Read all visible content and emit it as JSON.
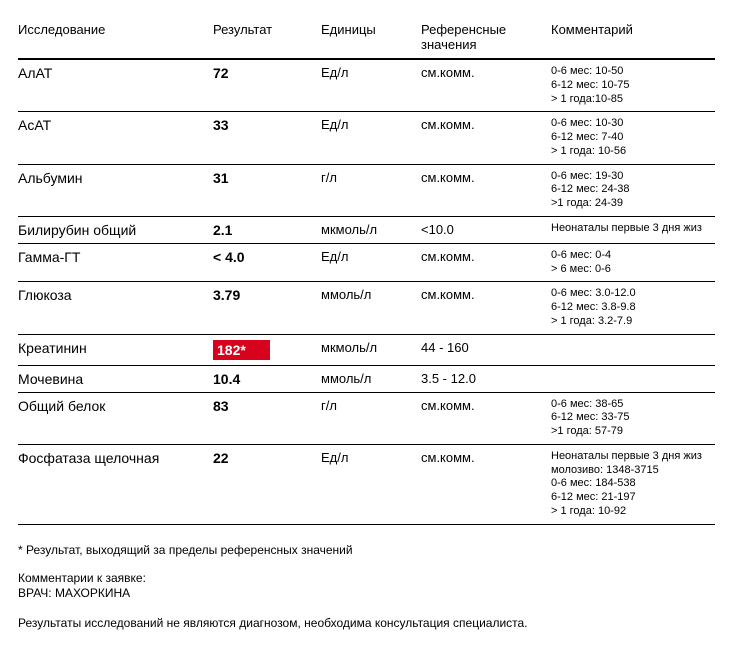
{
  "headers": {
    "test": "Исследование",
    "result": "Результат",
    "unit": "Единицы",
    "ref": "Референсные значения",
    "comment": "Комментарий"
  },
  "rows": [
    {
      "test": "АлАТ",
      "result": "72",
      "abnormal": false,
      "unit": "Ед/л",
      "ref": "см.комм.",
      "comment": [
        "0-6 мес: 10-50",
        "6-12 мес: 10-75",
        "> 1 года:10-85"
      ]
    },
    {
      "test": "АсАТ",
      "result": "33",
      "abnormal": false,
      "unit": "Ед/л",
      "ref": "см.комм.",
      "comment": [
        "0-6 мес: 10-30",
        "6-12 мес: 7-40",
        "> 1 года: 10-56"
      ]
    },
    {
      "test": "Альбумин",
      "result": "31",
      "abnormal": false,
      "unit": "г/л",
      "ref": "см.комм.",
      "comment": [
        "0-6 мес: 19-30",
        "6-12 мес: 24-38",
        ">1 года: 24-39"
      ]
    },
    {
      "test": "Билирубин общий",
      "result": "2.1",
      "abnormal": false,
      "unit": "мкмоль/л",
      "ref": "<10.0",
      "comment": [
        "Неонаталы первые 3 дня жиз"
      ]
    },
    {
      "test": "Гамма-ГТ",
      "result": "< 4.0",
      "abnormal": false,
      "unit": "Ед/л",
      "ref": "см.комм.",
      "comment": [
        "0-6 мес: 0-4",
        "> 6 мес: 0-6"
      ]
    },
    {
      "test": "Глюкоза",
      "result": "3.79",
      "abnormal": false,
      "unit": "ммоль/л",
      "ref": "см.комм.",
      "comment": [
        "0-6 мес: 3.0-12.0",
        "6-12 мес: 3.8-9.8",
        "> 1 года: 3.2-7.9"
      ]
    },
    {
      "test": "Креатинин",
      "result": "182*",
      "abnormal": true,
      "unit": "мкмоль/л",
      "ref": "44 - 160",
      "comment": []
    },
    {
      "test": "Мочевина",
      "result": "10.4",
      "abnormal": false,
      "unit": "ммоль/л",
      "ref": "3.5 - 12.0",
      "comment": []
    },
    {
      "test": "Общий белок",
      "result": "83",
      "abnormal": false,
      "unit": "г/л",
      "ref": "см.комм.",
      "comment": [
        "0-6 мес: 38-65",
        "6-12 мес: 33-75",
        ">1 года: 57-79"
      ]
    },
    {
      "test": "Фосфатаза щелочная",
      "result": "22",
      "abnormal": false,
      "unit": "Ед/л",
      "ref": "см.комм.",
      "comment": [
        "Неонаталы первые 3 дня жиз",
        "молозиво: 1348-3715",
        "0-6 мес: 184-538",
        "6-12 мес: 21-197",
        "> 1 года: 10-92"
      ]
    }
  ],
  "footnote_asterisk": "* Результат, выходящий за пределы референсных значений",
  "comments_label": "Комментарии к заявке:",
  "doctor_line": "ВРАЧ: МАХОРКИНА",
  "disclaimer": "Результаты исследований не являются диагнозом, необходима консультация специалиста.",
  "colors": {
    "abnormal_bg": "#d7021c",
    "abnormal_fg": "#ffffff",
    "text": "#000000",
    "border": "#000000"
  }
}
